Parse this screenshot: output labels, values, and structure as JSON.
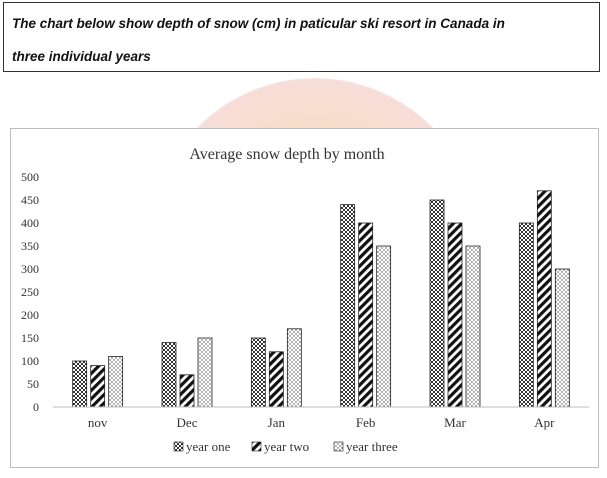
{
  "prompt": {
    "line1": "The chart below show depth of snow (cm) in paticular ski resort in Canada in",
    "line2": "three individual years"
  },
  "chart_data": {
    "type": "bar",
    "title": "Average snow depth by month",
    "xlabel": "",
    "ylabel": "",
    "categories": [
      "nov",
      "Dec",
      "Jan",
      "Feb",
      "Mar",
      "Apr"
    ],
    "ylim": [
      0,
      500
    ],
    "yticks": [
      0,
      50,
      100,
      150,
      200,
      250,
      300,
      350,
      400,
      450,
      500
    ],
    "grid": false,
    "legend_position": "bottom",
    "series": [
      {
        "name": "year one",
        "values": [
          100,
          140,
          150,
          440,
          450,
          400
        ]
      },
      {
        "name": "year two",
        "values": [
          90,
          70,
          120,
          400,
          400,
          470
        ]
      },
      {
        "name": "year three",
        "values": [
          110,
          150,
          170,
          350,
          350,
          300
        ]
      }
    ]
  }
}
